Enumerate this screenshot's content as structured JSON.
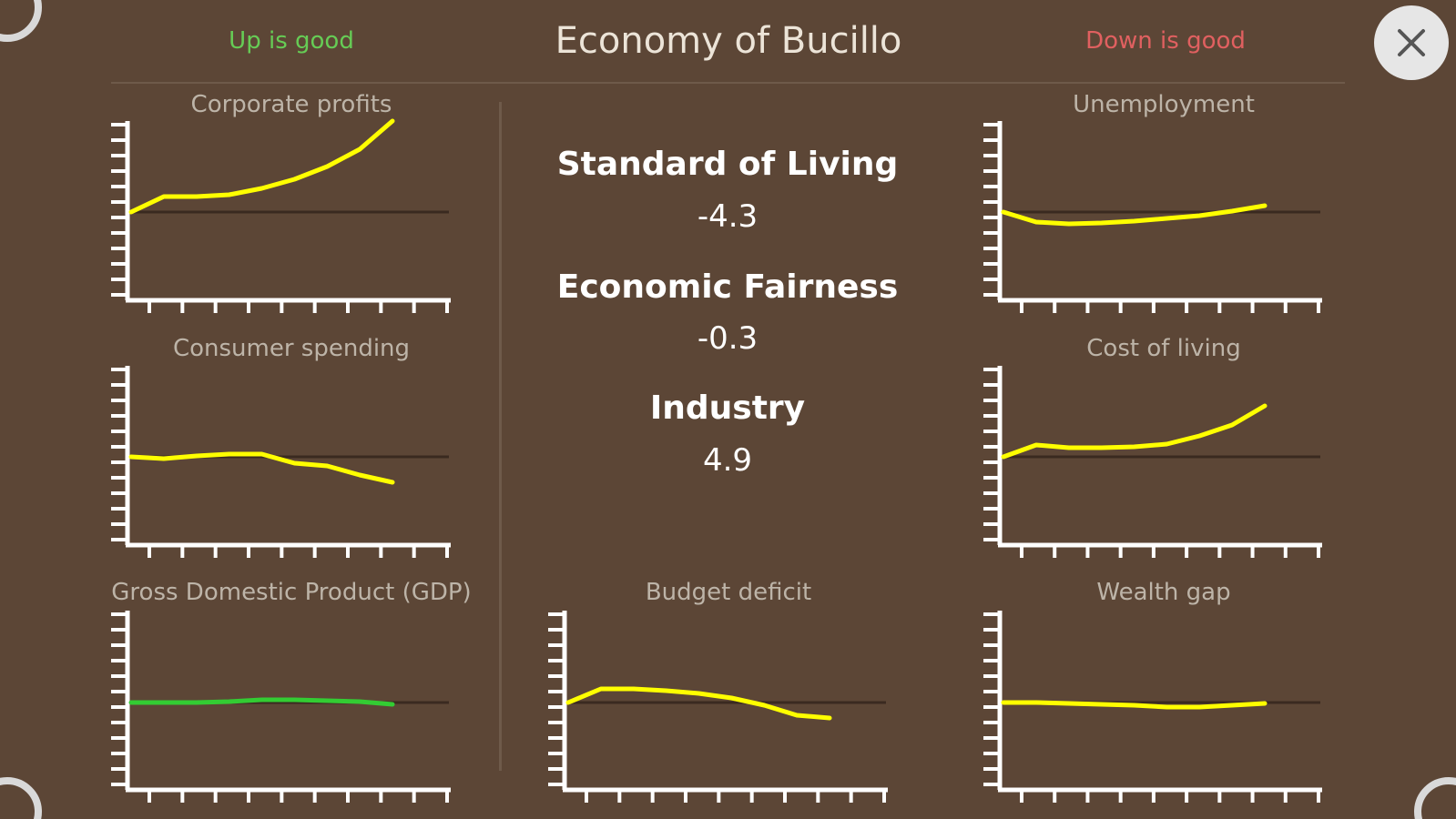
{
  "header": {
    "up_label": "Up is good",
    "title": "Economy of Bucillo",
    "down_label": "Down is good"
  },
  "close_button": {
    "icon": "close-icon"
  },
  "stats": [
    {
      "label": "Standard of Living",
      "value": "-4.3"
    },
    {
      "label": "Economic Fairness",
      "value": "-0.3"
    },
    {
      "label": "Industry",
      "value": "4.9"
    }
  ],
  "colors": {
    "background": "#5c4636",
    "up_good": "#66cc55",
    "down_good": "#e06060",
    "trend_line": "#ffff00",
    "gdp_line": "#33cc33",
    "axis": "#ffffff",
    "baseline": "#3a2a20"
  },
  "chart_data": [
    {
      "id": "corporate-profits",
      "type": "line",
      "title": "Corporate profits",
      "x": [
        0,
        1,
        2,
        3,
        4,
        5,
        6,
        7,
        8
      ],
      "values": [
        0,
        0.17,
        0.17,
        0.19,
        0.26,
        0.36,
        0.5,
        0.69,
        1.0
      ],
      "ylim": [
        -1,
        1
      ],
      "series_color": "#ffff00"
    },
    {
      "id": "consumer-spending",
      "type": "line",
      "title": "Consumer spending",
      "x": [
        0,
        1,
        2,
        3,
        4,
        5,
        6,
        7,
        8
      ],
      "values": [
        0,
        -0.02,
        0.01,
        0.03,
        0.03,
        -0.07,
        -0.1,
        -0.2,
        -0.28
      ],
      "ylim": [
        -1,
        1
      ],
      "series_color": "#ffff00"
    },
    {
      "id": "gdp",
      "type": "line",
      "title": "Gross Domestic Product (GDP)",
      "x": [
        0,
        1,
        2,
        3,
        4,
        5,
        6,
        7,
        8
      ],
      "values": [
        0,
        0,
        0,
        0.01,
        0.03,
        0.03,
        0.02,
        0.01,
        -0.02
      ],
      "ylim": [
        -1,
        1
      ],
      "series_color": "#33cc33"
    },
    {
      "id": "unemployment",
      "type": "line",
      "title": "Unemployment",
      "x": [
        0,
        1,
        2,
        3,
        4,
        5,
        6,
        7,
        8
      ],
      "values": [
        0,
        -0.11,
        -0.13,
        -0.12,
        -0.1,
        -0.07,
        -0.04,
        0.01,
        0.07
      ],
      "ylim": [
        -1,
        1
      ],
      "series_color": "#ffff00"
    },
    {
      "id": "cost-of-living",
      "type": "line",
      "title": "Cost of living",
      "x": [
        0,
        1,
        2,
        3,
        4,
        5,
        6,
        7,
        8
      ],
      "values": [
        0,
        0.13,
        0.1,
        0.1,
        0.11,
        0.14,
        0.23,
        0.35,
        0.56
      ],
      "ylim": [
        -1,
        1
      ],
      "series_color": "#ffff00"
    },
    {
      "id": "budget-deficit",
      "type": "line",
      "title": "Budget deficit",
      "x": [
        0,
        1,
        2,
        3,
        4,
        5,
        6,
        7,
        8
      ],
      "values": [
        0,
        0.15,
        0.15,
        0.13,
        0.1,
        0.05,
        -0.03,
        -0.14,
        -0.17
      ],
      "ylim": [
        -1,
        1
      ],
      "series_color": "#ffff00"
    },
    {
      "id": "wealth-gap",
      "type": "line",
      "title": "Wealth gap",
      "x": [
        0,
        1,
        2,
        3,
        4,
        5,
        6,
        7,
        8
      ],
      "values": [
        0,
        0,
        -0.01,
        -0.02,
        -0.03,
        -0.05,
        -0.05,
        -0.03,
        -0.01
      ],
      "ylim": [
        -1,
        1
      ],
      "series_color": "#ffff00"
    }
  ]
}
